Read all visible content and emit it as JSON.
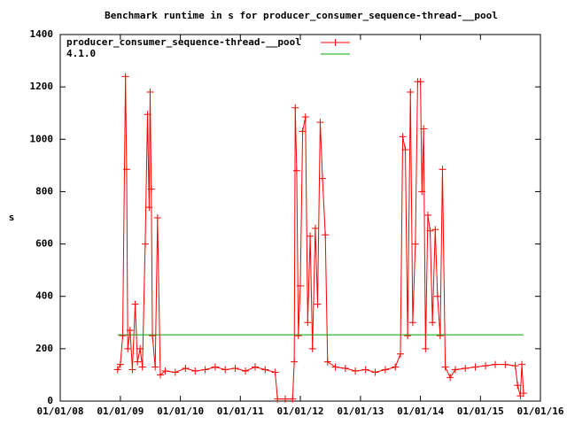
{
  "chart_data": {
    "type": "line",
    "title": "Benchmark runtime in s for producer_consumer_sequence-thread-__pool",
    "y_label": "s",
    "xlim": [
      "2008-01-01",
      "2016-01-01"
    ],
    "xticks": [
      {
        "value": "2008-01-01",
        "label": "01/01/08"
      },
      {
        "value": "2009-01-01",
        "label": "01/01/09"
      },
      {
        "value": "2010-01-01",
        "label": "01/01/10"
      },
      {
        "value": "2011-01-01",
        "label": "01/01/11"
      },
      {
        "value": "2012-01-01",
        "label": "01/01/12"
      },
      {
        "value": "2013-01-01",
        "label": "01/01/13"
      },
      {
        "value": "2014-01-01",
        "label": "01/01/14"
      },
      {
        "value": "2015-01-01",
        "label": "01/01/15"
      },
      {
        "value": "2016-01-01",
        "label": "01/01/16"
      }
    ],
    "ylim": [
      0,
      1400
    ],
    "yticks": [
      0,
      200,
      400,
      600,
      800,
      1000,
      1200,
      1400
    ],
    "legend": "top-left",
    "series": [
      {
        "name": "producer_consumer_sequence-thread-__pool",
        "color": "#ff0000",
        "marker": "+",
        "x": [
          "2008-12-15",
          "2009-01-01",
          "2009-01-15",
          "2009-02-01",
          "2009-02-08",
          "2009-02-15",
          "2009-03-01",
          "2009-03-15",
          "2009-04-01",
          "2009-04-15",
          "2009-05-01",
          "2009-05-15",
          "2009-06-01",
          "2009-06-15",
          "2009-06-25",
          "2009-07-01",
          "2009-07-08",
          "2009-07-15",
          "2009-08-01",
          "2009-08-15",
          "2009-09-01",
          "2009-10-01",
          "2009-12-01",
          "2010-02-01",
          "2010-04-01",
          "2010-06-01",
          "2010-08-01",
          "2010-10-01",
          "2010-12-01",
          "2011-02-01",
          "2011-04-01",
          "2011-06-01",
          "2011-08-01",
          "2011-08-15",
          "2011-10-01",
          "2011-11-15",
          "2011-11-25",
          "2011-12-01",
          "2011-12-10",
          "2011-12-20",
          "2012-01-01",
          "2012-01-15",
          "2012-02-01",
          "2012-02-15",
          "2012-03-01",
          "2012-03-15",
          "2012-04-01",
          "2012-04-15",
          "2012-05-01",
          "2012-05-15",
          "2012-06-01",
          "2012-06-15",
          "2012-08-01",
          "2012-10-01",
          "2012-12-01",
          "2013-02-01",
          "2013-04-01",
          "2013-06-01",
          "2013-08-01",
          "2013-09-01",
          "2013-09-15",
          "2013-10-01",
          "2013-10-15",
          "2013-11-01",
          "2013-11-15",
          "2013-12-01",
          "2013-12-15",
          "2014-01-01",
          "2014-01-10",
          "2014-01-20",
          "2014-02-01",
          "2014-02-15",
          "2014-03-01",
          "2014-03-15",
          "2014-04-01",
          "2014-04-15",
          "2014-05-01",
          "2014-05-15",
          "2014-06-01",
          "2014-07-01",
          "2014-08-01",
          "2014-10-01",
          "2014-12-01",
          "2015-02-01",
          "2015-04-01",
          "2015-06-01",
          "2015-08-01",
          "2015-08-15",
          "2015-09-01",
          "2015-09-10",
          "2015-09-20"
        ],
        "values": [
          120,
          140,
          250,
          1240,
          885,
          200,
          270,
          120,
          370,
          150,
          200,
          130,
          600,
          1095,
          740,
          1180,
          810,
          250,
          130,
          700,
          100,
          115,
          110,
          125,
          115,
          120,
          130,
          120,
          125,
          115,
          130,
          120,
          110,
          8,
          8,
          8,
          150,
          1120,
          880,
          250,
          440,
          1030,
          1085,
          300,
          630,
          200,
          660,
          370,
          1065,
          850,
          635,
          150,
          130,
          125,
          115,
          120,
          110,
          120,
          130,
          180,
          1010,
          960,
          250,
          1180,
          300,
          600,
          1220,
          1220,
          800,
          1040,
          200,
          710,
          650,
          300,
          655,
          400,
          250,
          885,
          130,
          90,
          120,
          125,
          130,
          135,
          140,
          140,
          135,
          60,
          20,
          140,
          30
        ]
      },
      {
        "name": "4.1.0",
        "color": "#00a000",
        "x": [
          "2008-12-15",
          "2015-09-20"
        ],
        "values": [
          253,
          253
        ]
      }
    ]
  }
}
